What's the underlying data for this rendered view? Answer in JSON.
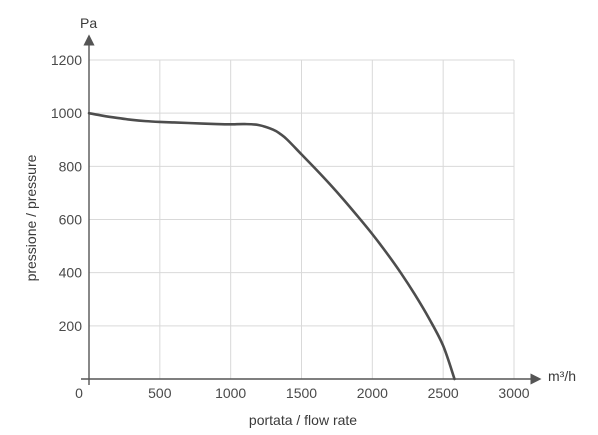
{
  "chart_data": {
    "type": "line",
    "xlabel": "portata / flow rate",
    "ylabel": "pressione / pressure",
    "x_unit": "m³/h",
    "y_unit": "Pa",
    "xlim": [
      0,
      3000
    ],
    "ylim": [
      0,
      1200
    ],
    "x_ticks": [
      "0",
      "500",
      "1000",
      "1500",
      "2000",
      "2500",
      "3000"
    ],
    "y_ticks": [
      "200",
      "400",
      "600",
      "800",
      "1000",
      "1200"
    ],
    "x_tick_values": [
      0,
      500,
      1000,
      1500,
      2000,
      2500,
      3000
    ],
    "y_tick_values": [
      200,
      400,
      600,
      800,
      1000,
      1200
    ],
    "grid": true,
    "series": [
      {
        "color": "#4d4d4d",
        "points": [
          [
            0,
            1000
          ],
          [
            100,
            990
          ],
          [
            200,
            982
          ],
          [
            300,
            975
          ],
          [
            400,
            970
          ],
          [
            500,
            967
          ],
          [
            600,
            965
          ],
          [
            700,
            963
          ],
          [
            800,
            961
          ],
          [
            900,
            959
          ],
          [
            1000,
            958
          ],
          [
            1100,
            959
          ],
          [
            1200,
            955
          ],
          [
            1300,
            938
          ],
          [
            1350,
            922
          ],
          [
            1400,
            900
          ],
          [
            1500,
            845
          ],
          [
            1600,
            790
          ],
          [
            1700,
            733
          ],
          [
            1800,
            673
          ],
          [
            1900,
            610
          ],
          [
            2000,
            545
          ],
          [
            2100,
            475
          ],
          [
            2200,
            400
          ],
          [
            2300,
            318
          ],
          [
            2400,
            228
          ],
          [
            2500,
            125
          ],
          [
            2580,
            0
          ]
        ]
      }
    ]
  }
}
